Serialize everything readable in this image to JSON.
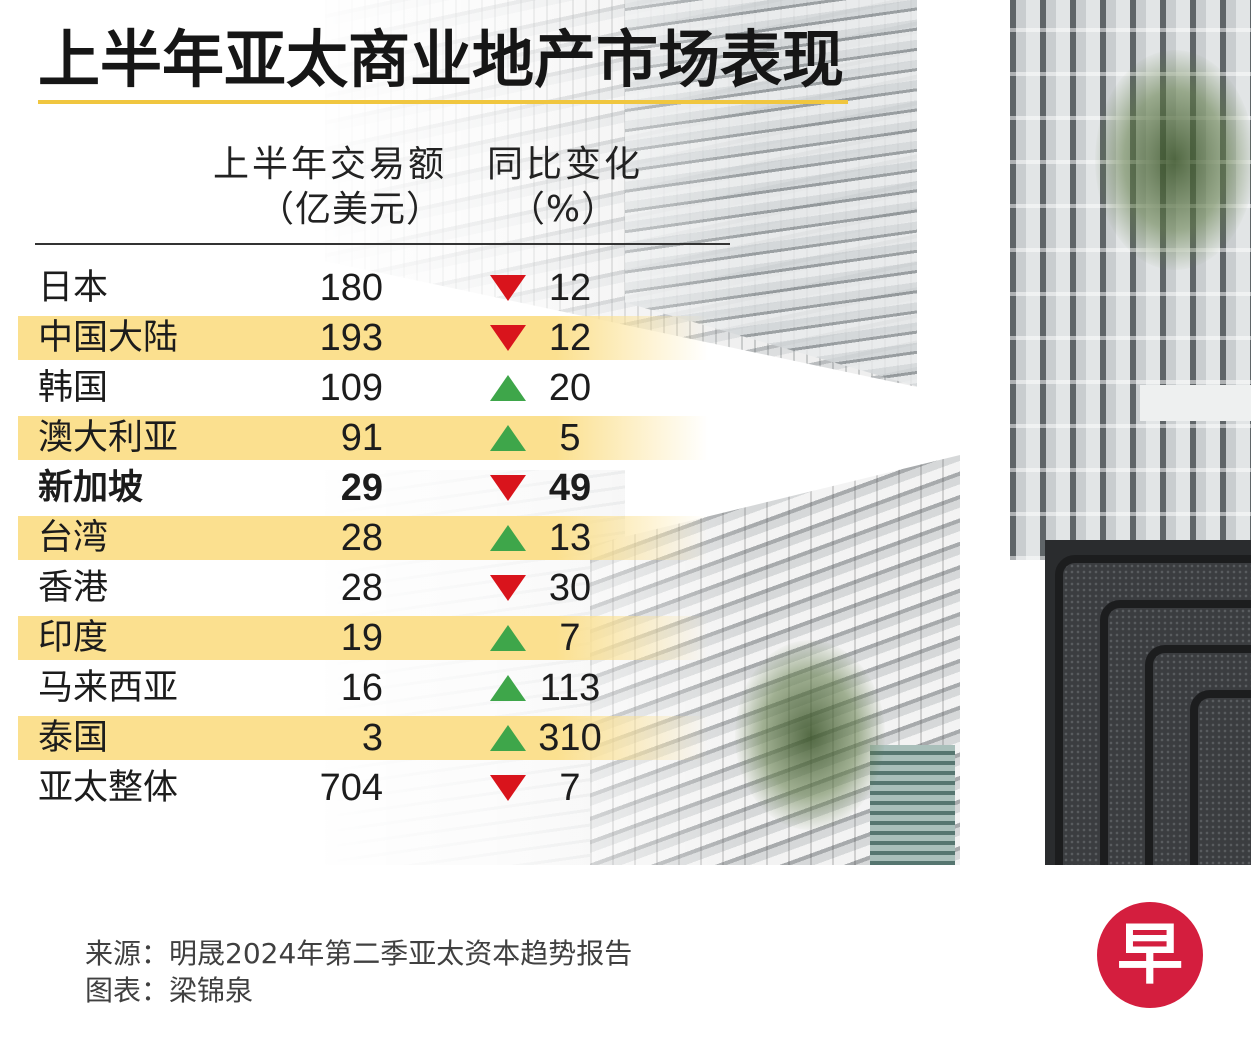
{
  "chart_data": {
    "type": "table",
    "title": "上半年亚太商业地产市场表现",
    "columns": [
      {
        "label": "上半年交易额",
        "unit": "（亿美元）"
      },
      {
        "label": "同比变化",
        "unit": "（%）"
      }
    ],
    "rows": [
      {
        "market": "日本",
        "volume": 180,
        "change": 12,
        "trend_icon": "down-arrow-icon"
      },
      {
        "market": "中国大陆",
        "volume": 193,
        "change": 12,
        "trend_icon": "down-arrow-icon"
      },
      {
        "market": "韩国",
        "volume": 109,
        "change": 20,
        "trend_icon": "up-arrow-icon"
      },
      {
        "market": "澳大利亚",
        "volume": 91,
        "change": 5,
        "trend_icon": "up-arrow-icon"
      },
      {
        "market": "新加坡",
        "volume": 29,
        "change": 49,
        "trend_icon": "down-arrow-icon"
      },
      {
        "market": "台湾",
        "volume": 28,
        "change": 13,
        "trend_icon": "up-arrow-icon"
      },
      {
        "market": "香港",
        "volume": 28,
        "change": 30,
        "trend_icon": "down-arrow-icon"
      },
      {
        "market": "印度",
        "volume": 19,
        "change": 7,
        "trend_icon": "up-arrow-icon"
      },
      {
        "market": "马来西亚",
        "volume": 16,
        "change": 113,
        "trend_icon": "up-arrow-icon"
      },
      {
        "market": "泰国",
        "volume": 3,
        "change": 310,
        "trend_icon": "up-arrow-icon"
      },
      {
        "market": "亚太整体",
        "volume": 704,
        "change": 7,
        "trend_icon": "down-arrow-icon"
      }
    ]
  },
  "footer": {
    "source": "来源：明晟2024年第二季亚太资本趋势报告",
    "credit": "图表：梁锦泉"
  },
  "logo": {
    "text": "早"
  },
  "colors": {
    "title_underline": "#F0C63F",
    "row_highlight": "#FBE08F",
    "down": "#D9141C",
    "up": "#3EA64A",
    "logo": "#D41E3E"
  }
}
